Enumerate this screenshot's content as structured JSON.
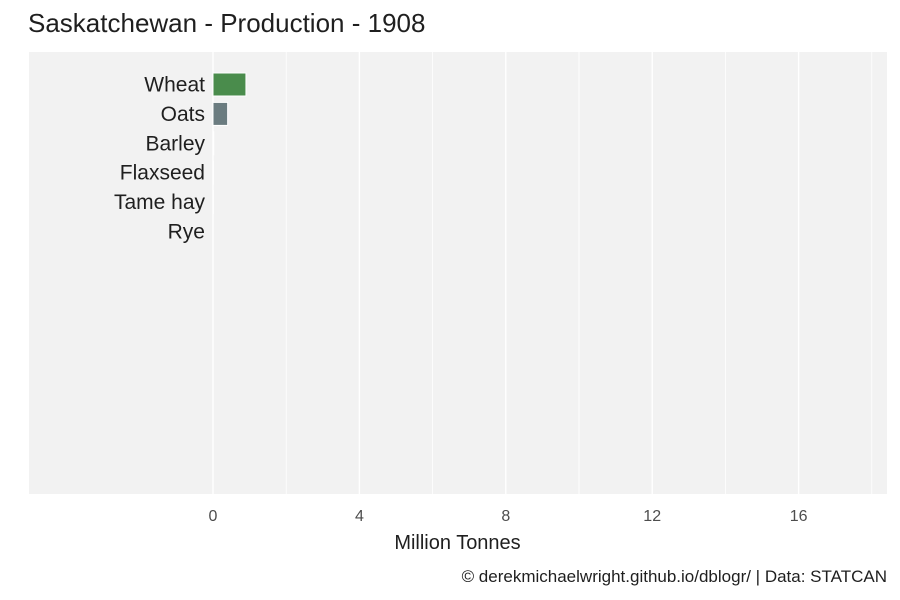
{
  "title": "Saskatchewan - Production - 1908",
  "caption": "© derekmichaelwright.github.io/dblogr/ | Data: STATCAN",
  "chart_data": {
    "type": "bar",
    "orientation": "horizontal",
    "title": "Saskatchewan - Production - 1908",
    "xlabel": "Million Tonnes",
    "ylabel": "",
    "categories": [
      "Wheat",
      "Oats",
      "Barley",
      "Flaxseed",
      "Tame hay",
      "Rye"
    ],
    "values": [
      0.9,
      0.4,
      0.02,
      0.01,
      0.01,
      0.0
    ],
    "colors": [
      "#4a8c4c",
      "#6b7c80",
      "#c8a23a",
      "#6b5b95",
      "#8fb84a",
      "#b07a3c"
    ],
    "xlim": [
      0,
      18
    ],
    "xticks": [
      0,
      4,
      8,
      12,
      16
    ],
    "x_tick_labels": [
      "0",
      "4",
      "8",
      "12",
      "16"
    ],
    "grid": true,
    "panel_background": "#f2f2f2",
    "legend": "none"
  }
}
